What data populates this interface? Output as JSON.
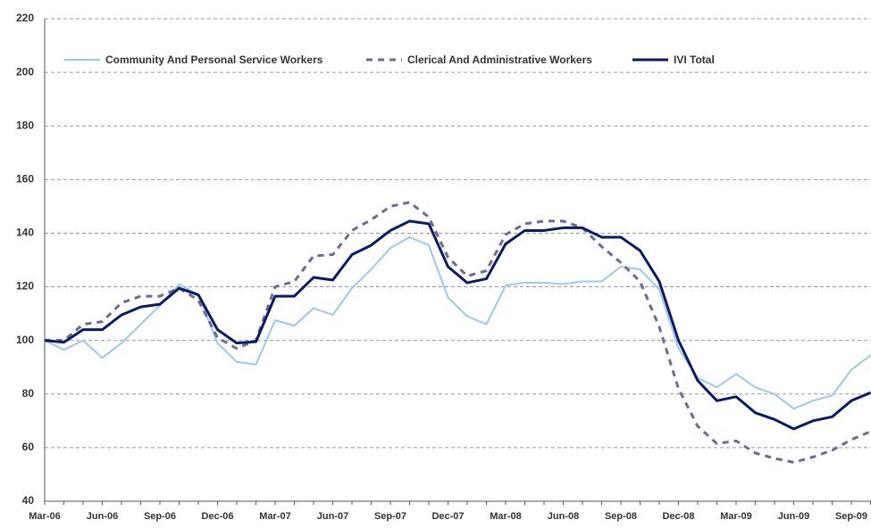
{
  "chart_data": {
    "type": "line",
    "categories": [
      "Mar-06",
      null,
      null,
      "Jun-06",
      null,
      null,
      "Sep-06",
      null,
      null,
      "Dec-06",
      null,
      null,
      "Mar-07",
      null,
      null,
      "Jun-07",
      null,
      null,
      "Sep-07",
      null,
      null,
      "Dec-07",
      null,
      null,
      "Mar-08",
      null,
      null,
      "Jun-08",
      null,
      null,
      "Sep-08",
      null,
      null,
      "Dec-08",
      null,
      null,
      "Mar-09",
      null,
      null,
      "Jun-09",
      null,
      null,
      "Sep-09",
      null
    ],
    "series": [
      {
        "name": "Community And Personal Service Workers",
        "color": "#9cc8f0",
        "dash": false,
        "values": [
          100,
          96.5,
          100,
          93.5,
          99,
          106,
          113,
          121,
          117,
          99,
          92,
          91,
          107.5,
          105.5,
          112,
          109.5,
          119.5,
          126.5,
          134.5,
          138.5,
          135.5,
          116,
          109,
          106,
          120.5,
          121.5,
          121.5,
          121,
          122,
          122,
          127.5,
          126.5,
          119,
          97,
          86,
          82.5,
          87.5,
          82.5,
          80,
          74.5,
          77.5,
          79.5,
          89,
          94.5
        ]
      },
      {
        "name": "Clerical And Administrative Workers",
        "color": "#6b6b98",
        "dash": true,
        "values": [
          100,
          100,
          106,
          107,
          114,
          116.5,
          116.5,
          119.5,
          115,
          101,
          97,
          100,
          120,
          122,
          131.5,
          132,
          141,
          145,
          150,
          151.5,
          146,
          131,
          124,
          126,
          139.5,
          143.5,
          144.5,
          144.5,
          142,
          135,
          129,
          122,
          105,
          82,
          68,
          61.5,
          62.5,
          58,
          56,
          54.5,
          56.5,
          59,
          63,
          66
        ]
      },
      {
        "name": "IVI Total",
        "color": "#0a1a6b",
        "dash": false,
        "values": [
          100,
          99.3,
          104,
          104,
          109.5,
          112.5,
          113.5,
          119.5,
          117,
          104,
          99,
          99.5,
          116.5,
          116.5,
          123.5,
          122.5,
          132,
          135.5,
          141,
          144.5,
          143.5,
          127.5,
          121.5,
          123,
          136,
          141,
          141,
          142,
          142,
          138.5,
          138.5,
          133.5,
          122,
          100,
          85,
          77.5,
          79,
          73,
          70.5,
          67,
          70,
          71.5,
          77.5,
          80.5
        ]
      }
    ],
    "ylim": [
      40,
      220
    ],
    "yticks": [
      40,
      60,
      80,
      100,
      120,
      140,
      160,
      180,
      200,
      220
    ],
    "grid": true
  }
}
